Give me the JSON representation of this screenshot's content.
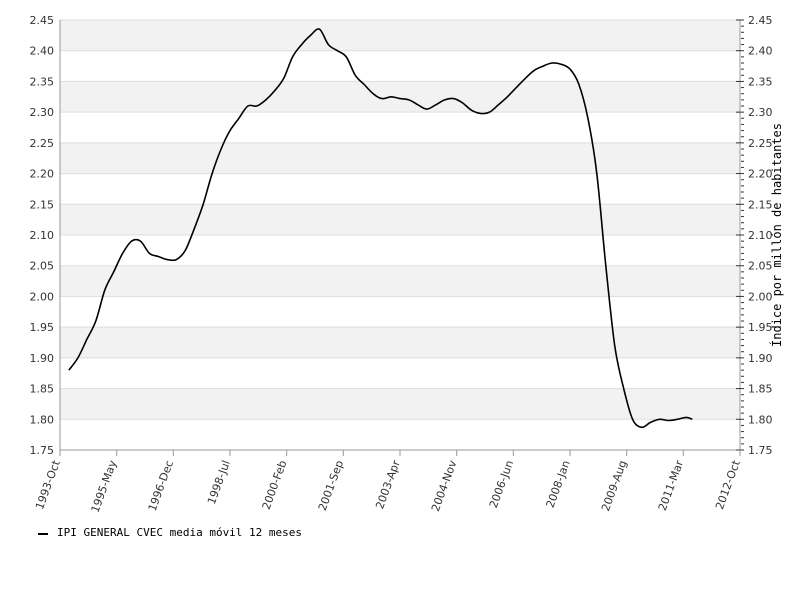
{
  "chart_data": {
    "type": "line",
    "title": "",
    "xlabel": "",
    "ylabel": "",
    "y2label": "Índice por millón de habitantes",
    "xlim": [
      "1993-10",
      "2012-10"
    ],
    "ylim": [
      1.75,
      2.45
    ],
    "y_ticks": [
      "1.75",
      "1.80",
      "1.85",
      "1.90",
      "1.95",
      "2.00",
      "2.05",
      "2.10",
      "2.15",
      "2.20",
      "2.25",
      "2.30",
      "2.35",
      "2.40",
      "2.45"
    ],
    "x_ticks": [
      "1993-Oct",
      "1995-May",
      "1996-Dec",
      "1998-Jul",
      "2000-Feb",
      "2001-Sep",
      "2003-Apr",
      "2004-Nov",
      "2006-Jun",
      "2008-Jan",
      "2009-Aug",
      "2011-Mar",
      "2012-Oct"
    ],
    "grid": true,
    "legend_position": "bottom-left",
    "series": [
      {
        "name": "IPI GENERAL CVEC media móvil 12 meses",
        "color": "#000000",
        "points": [
          [
            "1994-01",
            1.88
          ],
          [
            "1994-04",
            1.9
          ],
          [
            "1994-07",
            1.93
          ],
          [
            "1994-10",
            1.96
          ],
          [
            "1995-01",
            2.01
          ],
          [
            "1995-04",
            2.04
          ],
          [
            "1995-07",
            2.07
          ],
          [
            "1995-10",
            2.09
          ],
          [
            "1996-01",
            2.09
          ],
          [
            "1996-04",
            2.07
          ],
          [
            "1996-07",
            2.065
          ],
          [
            "1996-10",
            2.06
          ],
          [
            "1997-01",
            2.06
          ],
          [
            "1997-04",
            2.075
          ],
          [
            "1997-07",
            2.11
          ],
          [
            "1997-10",
            2.15
          ],
          [
            "1998-01",
            2.2
          ],
          [
            "1998-04",
            2.24
          ],
          [
            "1998-07",
            2.27
          ],
          [
            "1998-10",
            2.29
          ],
          [
            "1999-01",
            2.31
          ],
          [
            "1999-04",
            2.31
          ],
          [
            "1999-07",
            2.32
          ],
          [
            "1999-10",
            2.335
          ],
          [
            "2000-01",
            2.355
          ],
          [
            "2000-04",
            2.39
          ],
          [
            "2000-07",
            2.41
          ],
          [
            "2000-10",
            2.425
          ],
          [
            "2001-01",
            2.435
          ],
          [
            "2001-04",
            2.41
          ],
          [
            "2001-07",
            2.4
          ],
          [
            "2001-10",
            2.39
          ],
          [
            "2002-01",
            2.36
          ],
          [
            "2002-04",
            2.345
          ],
          [
            "2002-07",
            2.33
          ],
          [
            "2002-10",
            2.322
          ],
          [
            "2003-01",
            2.325
          ],
          [
            "2003-04",
            2.322
          ],
          [
            "2003-07",
            2.32
          ],
          [
            "2003-10",
            2.312
          ],
          [
            "2004-01",
            2.305
          ],
          [
            "2004-04",
            2.312
          ],
          [
            "2004-07",
            2.32
          ],
          [
            "2004-10",
            2.322
          ],
          [
            "2005-01",
            2.315
          ],
          [
            "2005-04",
            2.303
          ],
          [
            "2005-07",
            2.298
          ],
          [
            "2005-10",
            2.3
          ],
          [
            "2006-01",
            2.312
          ],
          [
            "2006-04",
            2.325
          ],
          [
            "2006-07",
            2.34
          ],
          [
            "2006-10",
            2.355
          ],
          [
            "2007-01",
            2.368
          ],
          [
            "2007-04",
            2.375
          ],
          [
            "2007-07",
            2.38
          ],
          [
            "2007-10",
            2.378
          ],
          [
            "2008-01",
            2.37
          ],
          [
            "2008-04",
            2.345
          ],
          [
            "2008-07",
            2.29
          ],
          [
            "2008-10",
            2.2
          ],
          [
            "2009-01",
            2.05
          ],
          [
            "2009-04",
            1.92
          ],
          [
            "2009-07",
            1.85
          ],
          [
            "2009-10",
            1.8
          ],
          [
            "2010-01",
            1.787
          ],
          [
            "2010-04",
            1.795
          ],
          [
            "2010-07",
            1.8
          ],
          [
            "2010-10",
            1.798
          ],
          [
            "2011-01",
            1.8
          ],
          [
            "2011-04",
            1.803
          ],
          [
            "2011-06",
            1.8
          ]
        ]
      }
    ]
  }
}
